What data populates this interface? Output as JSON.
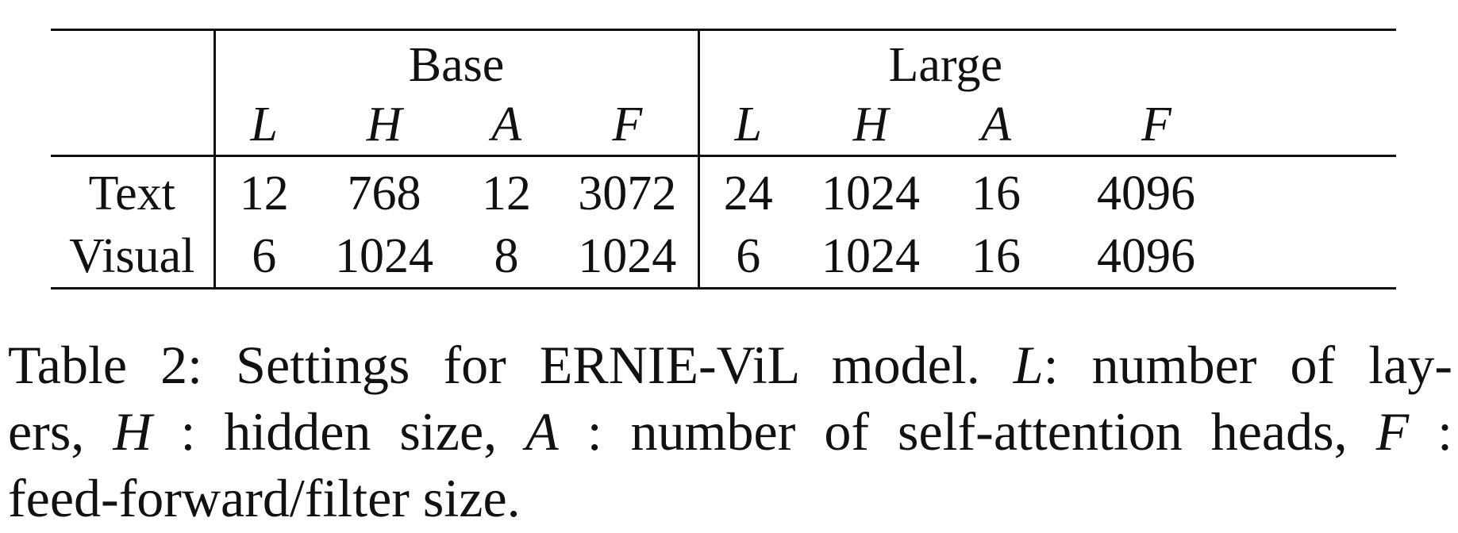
{
  "table": {
    "groups": [
      "Base",
      "Large"
    ],
    "subheaders": [
      "L",
      "H",
      "A",
      "F",
      "L",
      "H",
      "A",
      "F"
    ],
    "rows": [
      {
        "label": "Text",
        "cells": [
          "12",
          "768",
          "12",
          "3072",
          "24",
          "1024",
          "16",
          "4096"
        ]
      },
      {
        "label": "Visual",
        "cells": [
          "6",
          "1024",
          "8",
          "1024",
          "6",
          "1024",
          "16",
          "4096"
        ]
      }
    ]
  },
  "caption": {
    "line1_a": "Table 2: Settings for ERNIE-ViL model.",
    "line1_sym": "L",
    "line1_b": ": number of lay-",
    "line2_a": "ers,",
    "line2_sym1": "H",
    "line2_b": ": hidden size,",
    "line2_sym2": "A",
    "line2_c": ": number of self-attention heads,",
    "line2_sym3": "F",
    "line2_d": ":",
    "line3": "feed-forward/filter size."
  }
}
